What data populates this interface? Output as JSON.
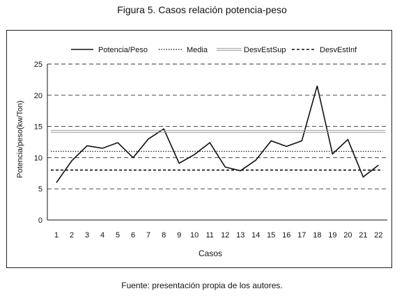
{
  "figure_title": "Figura 5. Casos relación potencia-peso",
  "source_note": "Fuente: presentación propia de los autores.",
  "chart_data": {
    "type": "line",
    "title": "Figura 5. Casos relación potencia-peso",
    "xlabel": "Casos",
    "ylabel": "Potencia/peso(kw/Ton)",
    "categories": [
      "1",
      "2",
      "3",
      "4",
      "5",
      "6",
      "7",
      "8",
      "9",
      "10",
      "11",
      "12",
      "13",
      "14",
      "15",
      "16",
      "17",
      "18",
      "19",
      "20",
      "21",
      "22"
    ],
    "ylim": [
      0,
      25
    ],
    "yticks": [
      0,
      5,
      10,
      15,
      20,
      25
    ],
    "grid": true,
    "legend_position": "top",
    "series": [
      {
        "name": "Potencia/Peso",
        "style": "solid",
        "values": [
          6.0,
          9.5,
          11.9,
          11.5,
          12.4,
          10.0,
          13.0,
          14.6,
          9.1,
          10.5,
          12.4,
          8.5,
          7.9,
          9.6,
          12.7,
          11.8,
          12.7,
          21.5,
          10.6,
          12.9,
          6.9,
          8.8
        ]
      },
      {
        "name": "Media",
        "style": "dotted",
        "constant": 11.0
      },
      {
        "name": "DesvEstSup",
        "style": "double-wavy",
        "constant": 14.2
      },
      {
        "name": "DesvEstInf",
        "style": "dashed",
        "constant": 8.0
      }
    ],
    "colors": {
      "line": "#111111",
      "grid": "#333333",
      "sup": "#999999"
    }
  }
}
